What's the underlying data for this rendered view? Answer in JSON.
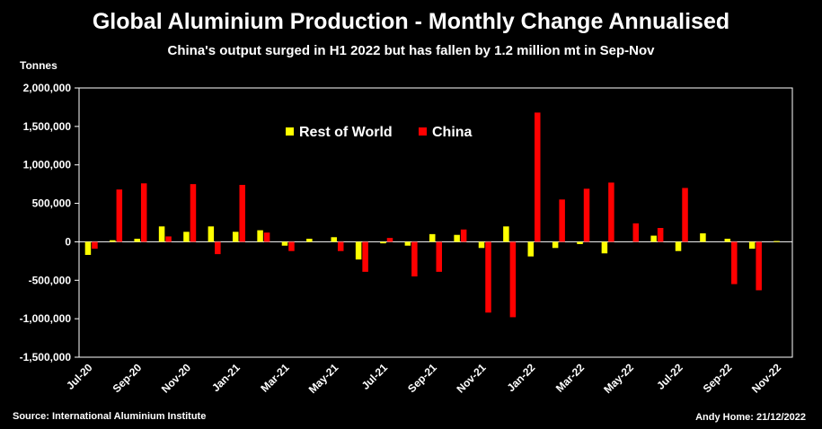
{
  "chart_data": {
    "type": "bar",
    "title": "Global Aluminium Production - Monthly Change Annualised",
    "subtitle": "China's output surged in H1 2022 but  has fallen by 1.2 million mt in Sep-Nov",
    "ylabel": "Tonnes",
    "ylim": [
      -1500000,
      2000000
    ],
    "yticks": [
      2000000,
      1500000,
      1000000,
      500000,
      0,
      -500000,
      -1000000,
      -1500000
    ],
    "ytick_labels": [
      "2,000,000",
      "1,500,000",
      "1,000,000",
      "500,000",
      "0",
      "-500,000",
      "-1,000,000",
      "-1,500,000"
    ],
    "grid": false,
    "legend": "top-center",
    "categories": [
      "Jul-20",
      "Aug-20",
      "Sep-20",
      "Oct-20",
      "Nov-20",
      "Dec-20",
      "Jan-21",
      "Feb-21",
      "Mar-21",
      "Apr-21",
      "May-21",
      "Jun-21",
      "Jul-21",
      "Aug-21",
      "Sep-21",
      "Oct-21",
      "Nov-21",
      "Dec-21",
      "Jan-22",
      "Feb-22",
      "Mar-22",
      "Apr-22",
      "May-22",
      "Jun-22",
      "Jul-22",
      "Aug-22",
      "Sep-22",
      "Oct-22",
      "Nov-22"
    ],
    "x_tick_labels": [
      "Jul-20",
      "Sep-20",
      "Nov-20",
      "Jan-21",
      "Mar-21",
      "May-21",
      "Jul-21",
      "Sep-21",
      "Nov-21",
      "Jan-22",
      "Mar-22",
      "May-22",
      "Jul-22",
      "Sep-22",
      "Nov-22"
    ],
    "series": [
      {
        "name": "Rest of World",
        "color": "#ffff00",
        "values": [
          -170000,
          20000,
          40000,
          200000,
          130000,
          200000,
          130000,
          150000,
          -50000,
          40000,
          60000,
          -230000,
          -20000,
          -50000,
          100000,
          90000,
          -80000,
          200000,
          -190000,
          -80000,
          -30000,
          -150000,
          0,
          80000,
          -120000,
          110000,
          40000,
          -90000,
          10000
        ]
      },
      {
        "name": "China",
        "color": "#ff0000",
        "values": [
          -90000,
          680000,
          760000,
          70000,
          750000,
          -160000,
          740000,
          120000,
          -120000,
          0,
          -120000,
          -390000,
          50000,
          -450000,
          -390000,
          160000,
          -920000,
          -980000,
          1680000,
          550000,
          690000,
          770000,
          240000,
          180000,
          700000,
          0,
          -550000,
          -630000,
          0
        ]
      }
    ]
  },
  "footer": {
    "source": "Source: International Aluminium Institute",
    "credit": "Andy Home: 21/12/2022"
  }
}
